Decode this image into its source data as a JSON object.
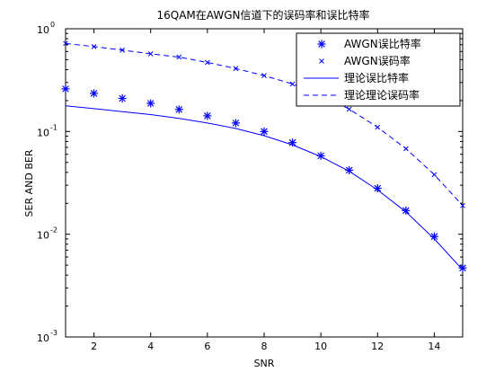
{
  "chart_data": {
    "type": "line",
    "title": "16QAM在AWGN信道下的误码率和误比特率",
    "xlabel": "SNR",
    "ylabel": "SER AND BER",
    "xlim": [
      1,
      15
    ],
    "ylim": [
      0.001,
      1
    ],
    "yscale": "log",
    "grid": false,
    "legend_position": "top-right",
    "x": [
      1,
      2,
      3,
      4,
      5,
      6,
      7,
      8,
      9,
      10,
      11,
      12,
      13,
      14,
      15
    ],
    "x_ticks": [
      {
        "value": 2,
        "label": "2"
      },
      {
        "value": 4,
        "label": "4"
      },
      {
        "value": 6,
        "label": "6"
      },
      {
        "value": 8,
        "label": "8"
      },
      {
        "value": 10,
        "label": "10"
      },
      {
        "value": 12,
        "label": "12"
      },
      {
        "value": 14,
        "label": "14"
      }
    ],
    "y_ticks": [
      {
        "value": 1,
        "base": "10",
        "exp": "0"
      },
      {
        "value": 0.1,
        "base": "10",
        "exp": "-1"
      },
      {
        "value": 0.01,
        "base": "10",
        "exp": "-2"
      },
      {
        "value": 0.001,
        "base": "10",
        "exp": "-3"
      }
    ],
    "series": [
      {
        "name": "AWGN误比特率",
        "marker": "asterisk",
        "line": "none",
        "color": "#0000ff",
        "values": [
          0.26,
          0.235,
          0.21,
          0.188,
          0.164,
          0.142,
          0.121,
          0.1,
          0.078,
          0.058,
          0.042,
          0.028,
          0.017,
          0.0095,
          0.0047
        ]
      },
      {
        "name": "AWGN误码率",
        "marker": "x",
        "line": "none",
        "color": "#0000ff",
        "values": [
          0.72,
          0.67,
          0.62,
          0.57,
          0.53,
          0.47,
          0.41,
          0.35,
          0.29,
          0.23,
          0.165,
          0.11,
          0.068,
          0.038,
          0.019
        ]
      },
      {
        "name": "理论误比特率",
        "marker": "none",
        "line": "solid",
        "color": "#0000ff",
        "values": [
          0.178,
          0.167,
          0.156,
          0.146,
          0.134,
          0.121,
          0.107,
          0.091,
          0.074,
          0.057,
          0.041,
          0.027,
          0.0165,
          0.009,
          0.0045
        ]
      },
      {
        "name": "理论理论误码率",
        "marker": "none",
        "line": "dashed",
        "color": "#0000ff",
        "values": [
          0.72,
          0.67,
          0.62,
          0.57,
          0.53,
          0.47,
          0.41,
          0.35,
          0.29,
          0.23,
          0.165,
          0.11,
          0.068,
          0.038,
          0.019
        ]
      }
    ]
  }
}
